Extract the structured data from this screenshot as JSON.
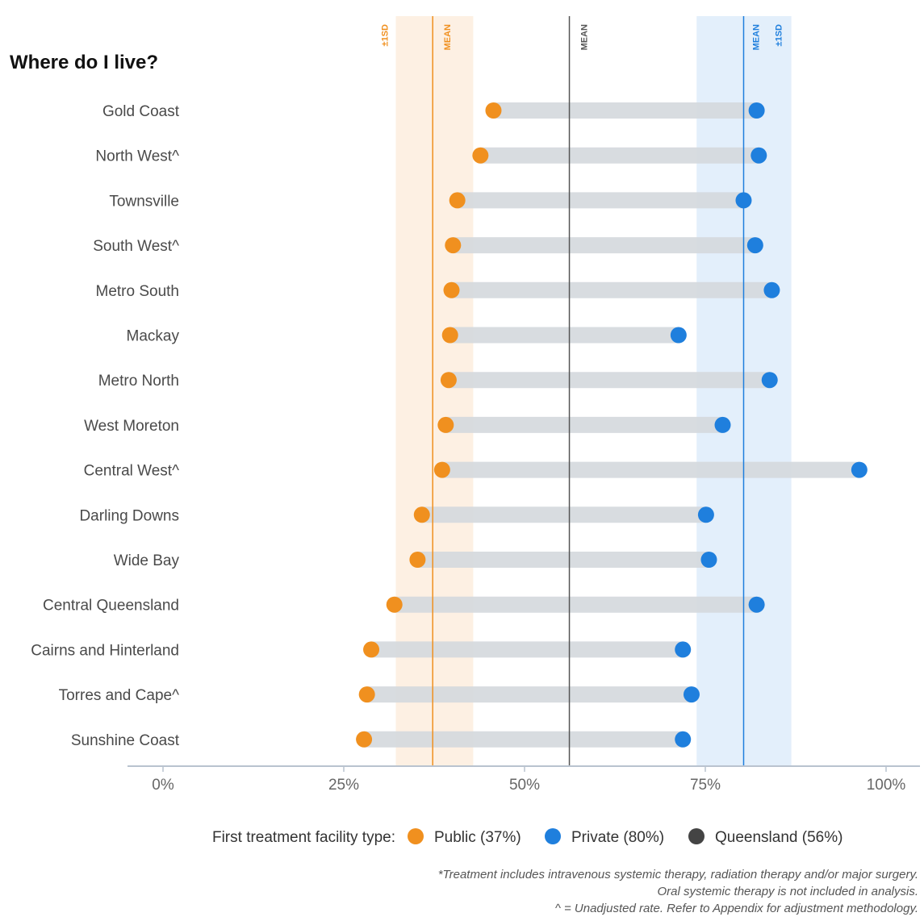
{
  "chart_data": {
    "type": "dot-range",
    "title": "Where do I live?",
    "categories": [
      "Gold Coast",
      "North West^",
      "Townsville",
      "South West^",
      "Metro South",
      "Mackay",
      "Metro North",
      "West Moreton",
      "Central West^",
      "Darling Downs",
      "Wide Bay",
      "Central Queensland",
      "Cairns and Hinterland",
      "Torres and Cape^",
      "Sunshine Coast"
    ],
    "series": [
      {
        "name": "Public (37%)",
        "color": "#f0901f",
        "values": [
          45.7,
          43.9,
          40.7,
          40.1,
          39.9,
          39.7,
          39.5,
          39.1,
          38.6,
          35.8,
          35.2,
          32.0,
          28.8,
          28.2,
          27.8
        ]
      },
      {
        "name": "Private (80%)",
        "color": "#1f7fdd",
        "values": [
          82.1,
          82.4,
          80.3,
          81.9,
          84.2,
          71.3,
          83.9,
          77.4,
          96.3,
          75.1,
          75.5,
          82.1,
          71.9,
          73.1,
          71.9
        ]
      }
    ],
    "xlim": [
      0,
      100
    ],
    "xticks": [
      "0%",
      "25%",
      "50%",
      "75%",
      "100%"
    ],
    "reference_lines": {
      "public": {
        "label": "MEAN",
        "band_label": "±1SD",
        "mean": 37.3,
        "band": [
          32.2,
          42.9
        ],
        "color": "#f0901f",
        "band_color": "#fdf0e3"
      },
      "private": {
        "label": "MEAN",
        "band_label": "±1SD",
        "mean": 80.3,
        "band": [
          73.8,
          86.9
        ],
        "color": "#1f7fdd",
        "band_color": "#e3effb"
      },
      "queensland": {
        "label": "MEAN",
        "mean": 56.2,
        "color": "#555555"
      }
    },
    "legend": {
      "title": "First treatment facility type:",
      "items": [
        {
          "label": "Public (37%)",
          "color": "#f0901f"
        },
        {
          "label": "Private (80%)",
          "color": "#1f7fdd"
        },
        {
          "label": "Queensland (56%)",
          "color": "#444444"
        }
      ],
      "position": "bottom"
    },
    "notes": [
      "*Treatment includes intravenous systemic therapy, radiation therapy and/or major surgery.",
      "Oral systemic therapy is not included in analysis.",
      "^ = Unadjusted rate. Refer to Appendix for adjustment methodology."
    ]
  }
}
